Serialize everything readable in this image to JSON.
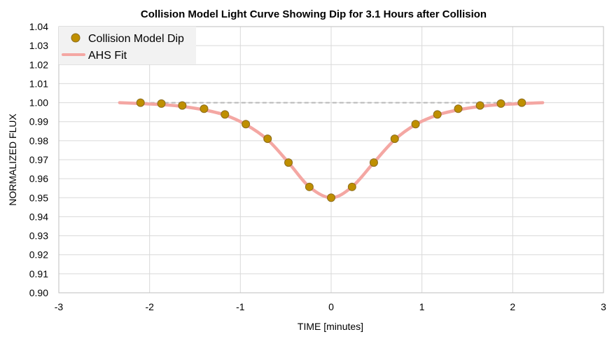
{
  "chart_data": {
    "type": "scatter",
    "title": "Collision Model Light Curve Showing Dip for 3.1 Hours after Collision",
    "xlabel": "TIME [minutes]",
    "ylabel": "NORMALIZED FLUX",
    "xlim": [
      -3,
      3
    ],
    "ylim": [
      0.9,
      1.04
    ],
    "x_ticks": [
      "-3",
      "-2",
      "-1",
      "0",
      "1",
      "2",
      "3"
    ],
    "y_ticks": [
      "0.90",
      "0.91",
      "0.92",
      "0.93",
      "0.94",
      "0.95",
      "0.96",
      "0.97",
      "0.98",
      "0.99",
      "1.00",
      "1.01",
      "1.02",
      "1.03",
      "1.04"
    ],
    "grid": true,
    "legend_position": "top-left",
    "baseline": {
      "y": 1.0,
      "x_range": [
        -2.3,
        2.3
      ],
      "style": "dashed",
      "color": "#b8b8b8"
    },
    "series": [
      {
        "name": "Collision Model Dip",
        "kind": "markers",
        "color": "#bf8f00",
        "x": [
          -2.1,
          -1.87,
          -1.64,
          -1.4,
          -1.17,
          -0.94,
          -0.7,
          -0.47,
          -0.24,
          0.0,
          0.23,
          0.47,
          0.7,
          0.93,
          1.17,
          1.4,
          1.64,
          1.87,
          2.1
        ],
        "y": [
          1.0,
          0.9995,
          0.9985,
          0.9968,
          0.9938,
          0.9887,
          0.981,
          0.9685,
          0.9557,
          0.95,
          0.9557,
          0.9685,
          0.981,
          0.9887,
          0.9938,
          0.9968,
          0.9985,
          0.9995,
          1.0
        ]
      },
      {
        "name": "AHS Fit",
        "kind": "line",
        "color": "#f4a7a3",
        "x": [
          -2.33,
          -2.1,
          -1.87,
          -1.64,
          -1.4,
          -1.17,
          -0.94,
          -0.7,
          -0.47,
          -0.24,
          0.0,
          0.23,
          0.47,
          0.7,
          0.93,
          1.17,
          1.4,
          1.64,
          1.87,
          2.1,
          2.33
        ],
        "y": [
          1.0,
          0.9995,
          0.999,
          0.998,
          0.9962,
          0.9935,
          0.9885,
          0.9805,
          0.9685,
          0.9557,
          0.95,
          0.9557,
          0.9685,
          0.9805,
          0.9885,
          0.9935,
          0.9962,
          0.998,
          0.999,
          0.9995,
          1.0
        ]
      }
    ]
  }
}
